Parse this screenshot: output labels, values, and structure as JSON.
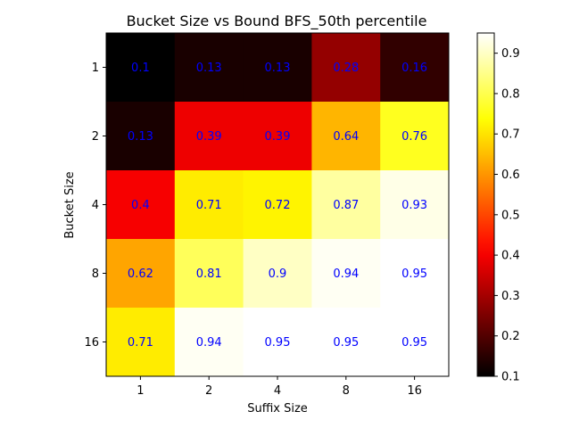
{
  "chart_data": {
    "type": "heatmap",
    "title": "Bucket Size vs Bound BFS_50th percentile",
    "xlabel": "Suffix Size",
    "ylabel": "Bucket Size",
    "x_categories": [
      "1",
      "2",
      "4",
      "8",
      "16"
    ],
    "y_categories": [
      "1",
      "2",
      "4",
      "8",
      "16"
    ],
    "values": [
      [
        0.1,
        0.13,
        0.13,
        0.28,
        0.16
      ],
      [
        0.13,
        0.39,
        0.39,
        0.64,
        0.76
      ],
      [
        0.4,
        0.71,
        0.72,
        0.87,
        0.93
      ],
      [
        0.62,
        0.81,
        0.9,
        0.94,
        0.95
      ],
      [
        0.71,
        0.94,
        0.95,
        0.95,
        0.95
      ]
    ],
    "colormap": "hot",
    "vmin": 0.1,
    "vmax": 0.95,
    "colorbar_ticks": [
      "0.1",
      "0.2",
      "0.3",
      "0.4",
      "0.5",
      "0.6",
      "0.7",
      "0.8",
      "0.9"
    ],
    "annotation_color": "#0000ff"
  }
}
